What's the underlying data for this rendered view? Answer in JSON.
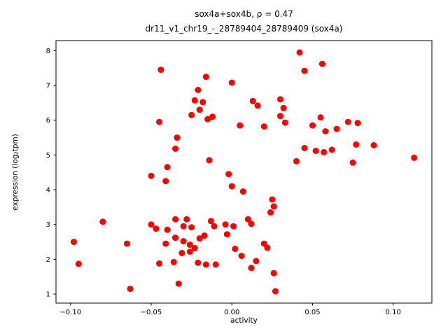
{
  "figure": {
    "background": "#ffffff"
  },
  "chart_data": {
    "type": "scatter",
    "title_line1": "sox4a+sox4b, ρ = 0.47",
    "title_line2": "dr11_v1_chr19_-_28789404_28789409 (sox4a)",
    "xlabel": "activity",
    "ylabel": "expression (log₂tpm)",
    "legend": "none",
    "grid": false,
    "marker_color": "#ff0000",
    "marker_radius": 4.5,
    "xlim": [
      -0.109,
      0.124
    ],
    "ylim": [
      0.74,
      8.29
    ],
    "xticks": [
      {
        "v": -0.1,
        "label": "−0.10"
      },
      {
        "v": -0.05,
        "label": "−0.05"
      },
      {
        "v": 0.0,
        "label": "0.00"
      },
      {
        "v": 0.05,
        "label": "0.05"
      },
      {
        "v": 0.1,
        "label": "0.10"
      }
    ],
    "yticks": [
      {
        "v": 1,
        "label": "1"
      },
      {
        "v": 2,
        "label": "2"
      },
      {
        "v": 3,
        "label": "3"
      },
      {
        "v": 4,
        "label": "4"
      },
      {
        "v": 5,
        "label": "5"
      },
      {
        "v": 6,
        "label": "6"
      },
      {
        "v": 7,
        "label": "7"
      },
      {
        "v": 8,
        "label": "8"
      }
    ],
    "points": [
      [
        0.042,
        7.95
      ],
      [
        0.045,
        7.42
      ],
      [
        0.056,
        7.62
      ],
      [
        -0.044,
        7.45
      ],
      [
        -0.016,
        7.25
      ],
      [
        0.0,
        7.08
      ],
      [
        -0.021,
        6.87
      ],
      [
        -0.023,
        6.57
      ],
      [
        -0.018,
        6.52
      ],
      [
        0.013,
        6.55
      ],
      [
        0.03,
        6.6
      ],
      [
        0.016,
        6.42
      ],
      [
        -0.02,
        6.3
      ],
      [
        -0.025,
        6.15
      ],
      [
        -0.012,
        6.1
      ],
      [
        -0.015,
        6.03
      ],
      [
        0.005,
        5.85
      ],
      [
        0.02,
        5.82
      ],
      [
        0.032,
        6.35
      ],
      [
        0.03,
        6.12
      ],
      [
        0.033,
        5.93
      ],
      [
        0.055,
        6.08
      ],
      [
        0.05,
        5.85
      ],
      [
        0.058,
        5.68
      ],
      [
        0.065,
        5.75
      ],
      [
        0.078,
        5.92
      ],
      [
        0.072,
        5.95
      ],
      [
        0.045,
        5.2
      ],
      [
        0.052,
        5.12
      ],
      [
        0.057,
        5.08
      ],
      [
        0.062,
        5.15
      ],
      [
        0.077,
        5.3
      ],
      [
        0.088,
        5.28
      ],
      [
        0.075,
        4.78
      ],
      [
        0.113,
        4.92
      ],
      [
        0.04,
        4.82
      ],
      [
        -0.045,
        5.95
      ],
      [
        -0.034,
        5.5
      ],
      [
        -0.035,
        5.18
      ],
      [
        -0.04,
        4.65
      ],
      [
        -0.041,
        4.25
      ],
      [
        -0.014,
        4.85
      ],
      [
        -0.002,
        4.45
      ],
      [
        0.0,
        4.1
      ],
      [
        0.007,
        3.95
      ],
      [
        0.025,
        3.72
      ],
      [
        0.026,
        3.52
      ],
      [
        0.024,
        3.35
      ],
      [
        -0.08,
        3.08
      ],
      [
        -0.065,
        2.45
      ],
      [
        -0.098,
        2.5
      ],
      [
        -0.095,
        1.87
      ],
      [
        -0.063,
        1.15
      ],
      [
        -0.05,
        3.0
      ],
      [
        -0.047,
        2.88
      ],
      [
        -0.035,
        3.15
      ],
      [
        -0.028,
        3.15
      ],
      [
        -0.03,
        2.95
      ],
      [
        -0.025,
        2.92
      ],
      [
        -0.04,
        2.85
      ],
      [
        -0.035,
        2.62
      ],
      [
        -0.03,
        2.52
      ],
      [
        -0.026,
        2.42
      ],
      [
        -0.023,
        2.32
      ],
      [
        -0.026,
        2.22
      ],
      [
        -0.031,
        2.18
      ],
      [
        -0.041,
        2.45
      ],
      [
        -0.02,
        2.6
      ],
      [
        -0.017,
        2.68
      ],
      [
        -0.013,
        3.1
      ],
      [
        -0.011,
        2.95
      ],
      [
        -0.004,
        3.0
      ],
      [
        0.001,
        2.95
      ],
      [
        -0.003,
        2.72
      ],
      [
        0.01,
        3.15
      ],
      [
        0.012,
        3.02
      ],
      [
        0.002,
        2.3
      ],
      [
        0.006,
        2.1
      ],
      [
        -0.01,
        1.85
      ],
      [
        -0.016,
        1.85
      ],
      [
        -0.021,
        1.9
      ],
      [
        0.015,
        1.95
      ],
      [
        0.02,
        2.45
      ],
      [
        0.022,
        2.33
      ],
      [
        0.012,
        1.75
      ],
      [
        0.026,
        1.6
      ],
      [
        0.027,
        1.08
      ],
      [
        -0.045,
        1.88
      ],
      [
        -0.036,
        1.92
      ],
      [
        -0.033,
        1.3
      ],
      [
        -0.05,
        4.4
      ]
    ]
  }
}
